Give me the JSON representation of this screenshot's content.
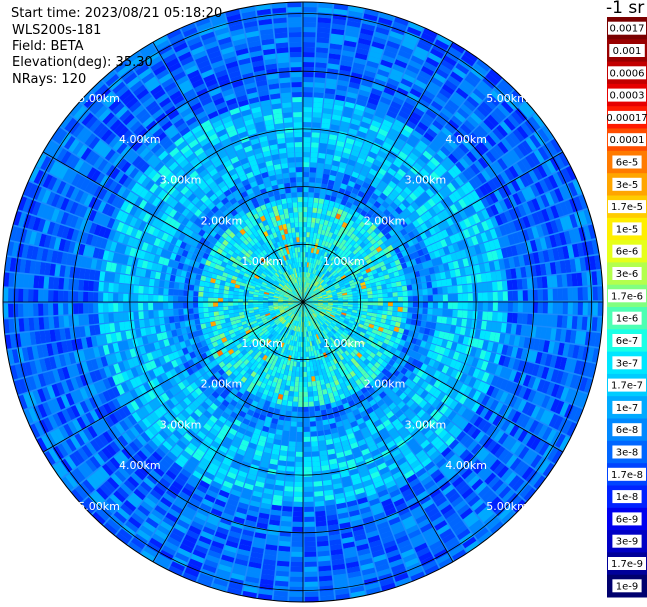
{
  "info": {
    "start_time": "Start time: 2023/08/21 05:18:20",
    "device": "WLS200s-181",
    "field": "Field: BETA",
    "elevation": "Elevation(deg): 35.30",
    "nrays": "NRays: 120"
  },
  "colorbar": {
    "unit": "-1 sr",
    "labels": [
      "0.0017",
      "0.001",
      "0.0006",
      "0.0003",
      "0.00017",
      "0.0001",
      "6e-5",
      "3e-5",
      "1.7e-5",
      "1e-5",
      "6e-6",
      "3e-6",
      "1.7e-6",
      "1e-6",
      "6e-7",
      "3e-7",
      "1.7e-7",
      "1e-7",
      "6e-8",
      "3e-8",
      "1.7e-8",
      "1e-8",
      "6e-9",
      "3e-9",
      "1.7e-9",
      "1e-9"
    ],
    "colors": [
      "#7a0000",
      "#990000",
      "#c20000",
      "#e60000",
      "#ff1a00",
      "#ff4d00",
      "#ff7a00",
      "#ffa500",
      "#ffcc00",
      "#ffee00",
      "#e6ff1a",
      "#b3ff4d",
      "#80ff80",
      "#4dffb3",
      "#1affe6",
      "#00e6ff",
      "#00ccff",
      "#00aaff",
      "#0088ff",
      "#0066ff",
      "#0044ff",
      "#0022ff",
      "#0000ee",
      "#0000c4",
      "#000099",
      "#00006e"
    ]
  },
  "chart_data": {
    "type": "heatmap",
    "projection": "polar (PPI scan)",
    "n_rays": 120,
    "range_rings_km": [
      1,
      2,
      3,
      4,
      5
    ],
    "range_labels": [
      "1.00km",
      "2.00km",
      "3.00km",
      "4.00km",
      "5.00km"
    ],
    "max_range_km": 5.2,
    "colormap": "jet",
    "color_scale": "log",
    "value_range": [
      1e-09,
      0.0017
    ],
    "typical_values": [
      {
        "range_km": [
          0,
          0.5
        ],
        "value": 1e-06
      },
      {
        "range_km": [
          0.5,
          1.8
        ],
        "value": 4e-07
      },
      {
        "range_km": [
          1.8,
          2.3
        ],
        "value": 5e-08
      },
      {
        "range_km": [
          2.3,
          3.5
        ],
        "value": 1.7e-07
      },
      {
        "range_km": [
          3.5,
          5.2
        ],
        "value": 3e-08
      }
    ],
    "hotspots": [
      {
        "label": "near-field bright echoes",
        "value": 3e-05
      }
    ]
  }
}
